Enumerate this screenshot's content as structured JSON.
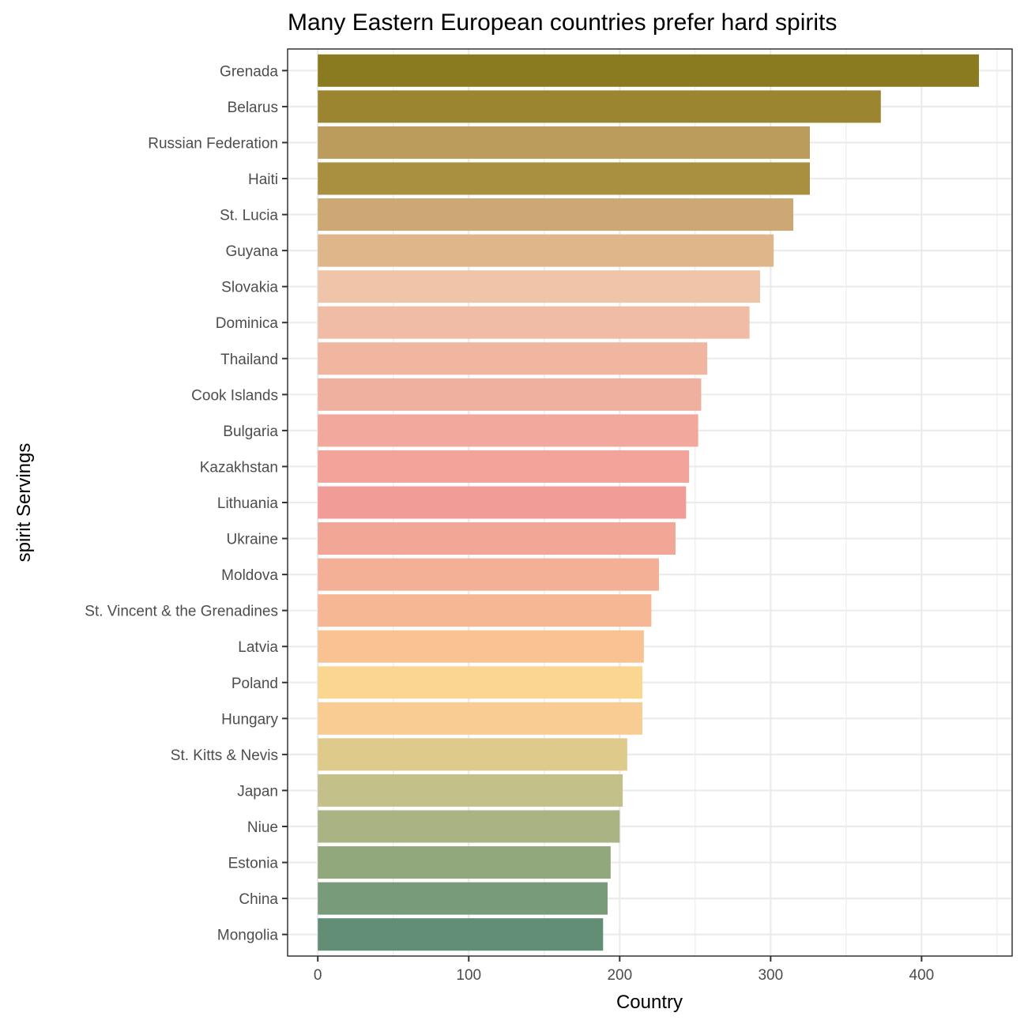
{
  "chart_data": {
    "type": "bar",
    "orientation": "horizontal",
    "title": "Many Eastern European countries prefer hard spirits",
    "xlabel": "Country",
    "ylabel": "spirit Servings",
    "xlim": [
      -20,
      460
    ],
    "x_ticks": [
      0,
      100,
      200,
      300,
      400
    ],
    "grid": true,
    "legend": "none",
    "categories": [
      "Grenada",
      "Belarus",
      "Russian Federation",
      "Haiti",
      "St. Lucia",
      "Guyana",
      "Slovakia",
      "Dominica",
      "Thailand",
      "Cook Islands",
      "Bulgaria",
      "Kazakhstan",
      "Lithuania",
      "Ukraine",
      "Moldova",
      "St. Vincent & the Grenadines",
      "Latvia",
      "Poland",
      "Hungary",
      "St. Kitts & Nevis",
      "Japan",
      "Niue",
      "Estonia",
      "China",
      "Mongolia"
    ],
    "values": [
      438,
      373,
      326,
      326,
      315,
      302,
      293,
      286,
      258,
      254,
      252,
      246,
      244,
      237,
      226,
      221,
      216,
      215,
      215,
      205,
      202,
      200,
      194,
      192,
      189
    ],
    "colors": [
      "#8a7a20",
      "#9b8530",
      "#bc9c5c",
      "#a98f40",
      "#cca874",
      "#deb68a",
      "#f0c4a8",
      "#f0bca6",
      "#f0b6a0",
      "#f0b0a0",
      "#f2a89c",
      "#f2a49a",
      "#f29c98",
      "#f2a696",
      "#f4b096",
      "#f6b894",
      "#f8c292",
      "#fad690",
      "#f8cc92",
      "#decb8c",
      "#c4c08a",
      "#a9b384",
      "#90a87c",
      "#789c7a",
      "#628e76"
    ]
  }
}
